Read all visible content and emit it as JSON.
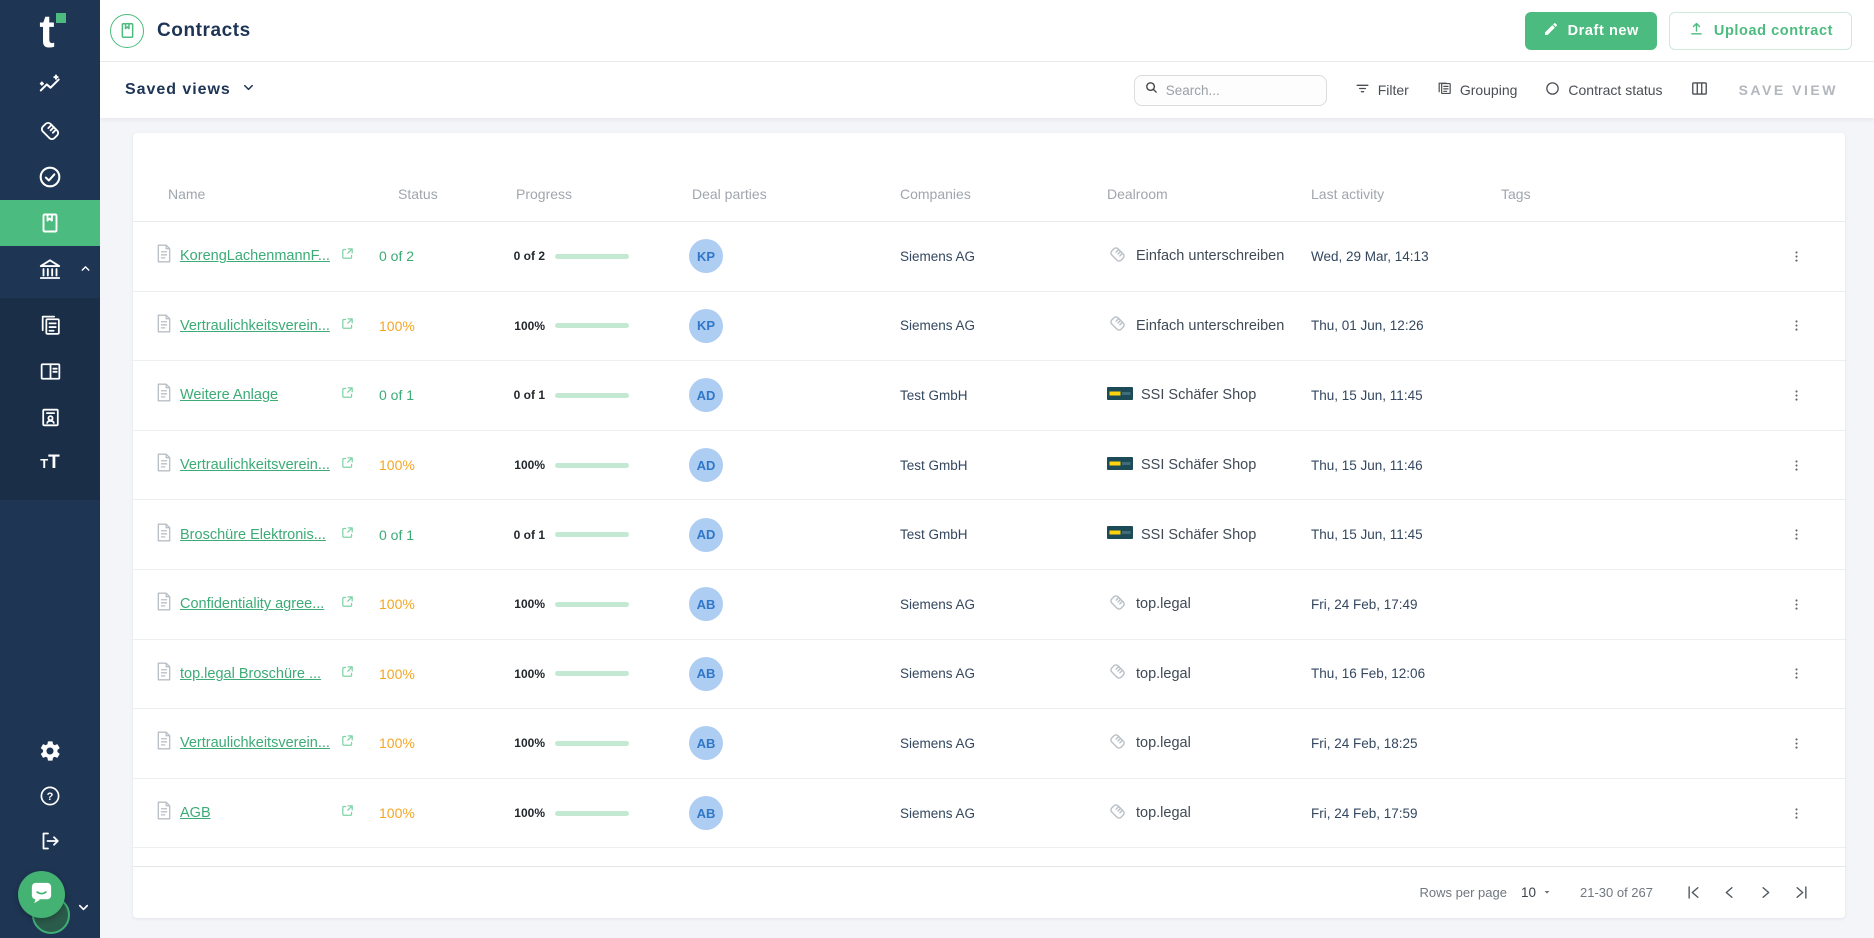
{
  "colors": {
    "accent_green": "#4cbb7f",
    "link_green": "#3cab76",
    "progress_fill": "#4db873",
    "progress_track": "#c3e9d2",
    "status_green": "#3cab76",
    "status_orange": "#f5a623",
    "sidebar_navy": "#1e3553",
    "title_navy": "#1d3455",
    "content_bg": "#f3f5f9",
    "avatar_bg": "#aecdf2",
    "avatar_text": "#3077c8"
  },
  "sidebar": {
    "logo_letter": "t",
    "nav_icons": [
      "analytics-icon",
      "handshake-icon",
      "check-circle-icon",
      "contracts-book-icon",
      "bank-icon",
      "library-icon",
      "open-book-icon",
      "contact-card-icon",
      "text-styles-icon"
    ],
    "active_item": "contracts-book-icon",
    "footer_icons": [
      "gear-icon",
      "help-icon",
      "logout-icon",
      "chat-launcher-icon",
      "profile-avatar",
      "chevron-down-icon"
    ]
  },
  "header": {
    "title": "Contracts",
    "draft_new": "Draft new",
    "upload_contract": "Upload contract"
  },
  "toolbar": {
    "saved_views": "Saved views",
    "search_placeholder": "Search...",
    "filter": "Filter",
    "grouping": "Grouping",
    "contract_status": "Contract status",
    "save_view": "SAVE VIEW"
  },
  "table": {
    "columns": [
      "Name",
      "Status",
      "Progress",
      "Deal parties",
      "Companies",
      "Dealroom",
      "Last activity",
      "Tags"
    ],
    "rows": [
      {
        "name": "KorengLachenmannF...",
        "status": "0 of 2",
        "status_color": "green",
        "progress_label": "0 of 2",
        "progress_pct": 0,
        "initials": "KP",
        "company": "Siemens AG",
        "dealroom": "Einfach unterschreiben",
        "dealroom_icon": "handshake",
        "last_activity": "Wed, 29 Mar, 14:13",
        "tags": ""
      },
      {
        "name": "Vertraulichkeitsverein...",
        "status": "100%",
        "status_color": "orange",
        "progress_label": "100%",
        "progress_pct": 100,
        "initials": "KP",
        "company": "Siemens AG",
        "dealroom": "Einfach unterschreiben",
        "dealroom_icon": "handshake",
        "last_activity": "Thu, 01 Jun, 12:26",
        "tags": ""
      },
      {
        "name": "Weitere Anlage",
        "status": "0 of 1",
        "status_color": "green",
        "progress_label": "0 of 1",
        "progress_pct": 0,
        "initials": "AD",
        "company": "Test GmbH",
        "dealroom": "SSI Schäfer Shop",
        "dealroom_icon": "ssi",
        "last_activity": "Thu, 15 Jun, 11:45",
        "tags": ""
      },
      {
        "name": "Vertraulichkeitsverein...",
        "status": "100%",
        "status_color": "orange",
        "progress_label": "100%",
        "progress_pct": 100,
        "initials": "AD",
        "company": "Test GmbH",
        "dealroom": "SSI Schäfer Shop",
        "dealroom_icon": "ssi",
        "last_activity": "Thu, 15 Jun, 11:46",
        "tags": ""
      },
      {
        "name": "Broschüre Elektronis...",
        "status": "0 of 1",
        "status_color": "green",
        "progress_label": "0 of 1",
        "progress_pct": 0,
        "initials": "AD",
        "company": "Test GmbH",
        "dealroom": "SSI Schäfer Shop",
        "dealroom_icon": "ssi",
        "last_activity": "Thu, 15 Jun, 11:45",
        "tags": ""
      },
      {
        "name": "Confidentiality agree...",
        "status": "100%",
        "status_color": "orange",
        "progress_label": "100%",
        "progress_pct": 100,
        "initials": "AB",
        "company": "Siemens AG",
        "dealroom": "top.legal",
        "dealroom_icon": "handshake",
        "last_activity": "Fri, 24 Feb, 17:49",
        "tags": ""
      },
      {
        "name": "top.legal Broschüre ...",
        "status": "100%",
        "status_color": "orange",
        "progress_label": "100%",
        "progress_pct": 100,
        "initials": "AB",
        "company": "Siemens AG",
        "dealroom": "top.legal",
        "dealroom_icon": "handshake",
        "last_activity": "Thu, 16 Feb, 12:06",
        "tags": ""
      },
      {
        "name": "Vertraulichkeitsverein...",
        "status": "100%",
        "status_color": "orange",
        "progress_label": "100%",
        "progress_pct": 100,
        "initials": "AB",
        "company": "Siemens AG",
        "dealroom": "top.legal",
        "dealroom_icon": "handshake",
        "last_activity": "Fri, 24 Feb, 18:25",
        "tags": ""
      },
      {
        "name": "AGB",
        "status": "100%",
        "status_color": "orange",
        "progress_label": "100%",
        "progress_pct": 100,
        "initials": "AB",
        "company": "Siemens AG",
        "dealroom": "top.legal",
        "dealroom_icon": "handshake",
        "last_activity": "Fri, 24 Feb, 17:59",
        "tags": ""
      },
      {
        "name": "",
        "status": "",
        "status_color": "",
        "progress_label": "",
        "progress_pct": 0,
        "initials": "",
        "company": "",
        "dealroom": "",
        "dealroom_icon": "none",
        "last_activity": "",
        "tags": ""
      }
    ]
  },
  "footer": {
    "rows_per_page_label": "Rows per page",
    "rows_per_page_value": "10",
    "range_label": "21-30 of 267"
  }
}
